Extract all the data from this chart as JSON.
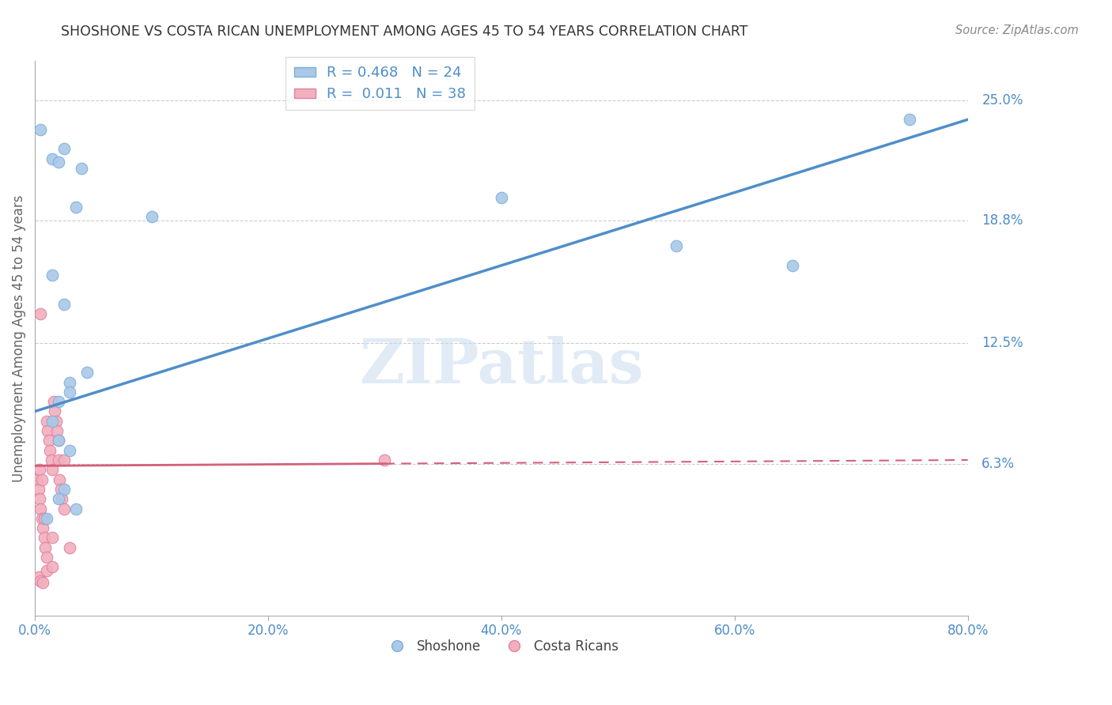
{
  "title": "SHOSHONE VS COSTA RICAN UNEMPLOYMENT AMONG AGES 45 TO 54 YEARS CORRELATION CHART",
  "source": "Source: ZipAtlas.com",
  "xlabel_ticks": [
    "0.0%",
    "20.0%",
    "40.0%",
    "60.0%",
    "80.0%"
  ],
  "xlabel_vals": [
    0.0,
    20.0,
    40.0,
    60.0,
    80.0
  ],
  "ylabel_right_labels": [
    "25.0%",
    "18.8%",
    "12.5%",
    "6.3%"
  ],
  "ylabel_right_vals": [
    25.0,
    18.8,
    12.5,
    6.3
  ],
  "xlim": [
    0.0,
    80.0
  ],
  "ylim": [
    -1.5,
    27.0
  ],
  "watermark": "ZIPatlas",
  "legend_blue_r": "0.468",
  "legend_blue_n": "24",
  "legend_pink_r": "0.011",
  "legend_pink_n": "38",
  "shoshone_x": [
    0.5,
    2.5,
    4.0,
    1.5,
    2.0,
    3.5,
    10.0,
    1.5,
    2.5,
    3.0,
    4.5,
    2.0,
    3.0,
    40.0,
    55.0,
    65.0,
    75.0,
    1.5,
    2.0,
    3.0,
    2.5,
    2.0,
    1.0,
    3.5
  ],
  "shoshone_y": [
    23.5,
    22.5,
    21.5,
    22.0,
    21.8,
    19.5,
    19.0,
    16.0,
    14.5,
    10.5,
    11.0,
    9.5,
    10.0,
    20.0,
    17.5,
    16.5,
    24.0,
    8.5,
    7.5,
    7.0,
    5.0,
    4.5,
    3.5,
    4.0
  ],
  "costaricans_x": [
    0.2,
    0.3,
    0.4,
    0.5,
    0.6,
    0.7,
    0.8,
    0.9,
    1.0,
    1.0,
    1.1,
    1.2,
    1.3,
    1.4,
    1.5,
    1.6,
    1.7,
    1.8,
    1.9,
    2.0,
    2.1,
    2.2,
    2.3,
    2.5,
    0.3,
    0.5,
    0.7,
    1.0,
    1.5,
    2.0,
    0.4,
    0.6,
    2.5,
    0.5,
    30.0,
    0.8,
    1.5,
    3.0
  ],
  "costaricans_y": [
    5.5,
    5.0,
    4.5,
    4.0,
    3.5,
    3.0,
    2.5,
    2.0,
    1.5,
    8.5,
    8.0,
    7.5,
    7.0,
    6.5,
    6.0,
    9.5,
    9.0,
    8.5,
    8.0,
    7.5,
    5.5,
    5.0,
    4.5,
    4.0,
    0.5,
    0.3,
    0.2,
    0.8,
    1.0,
    6.5,
    6.0,
    5.5,
    6.5,
    14.0,
    6.5,
    3.5,
    2.5,
    2.0
  ],
  "blue_line_color": "#4f8ec9",
  "pink_line_color": "#d4607a",
  "blue_dot_facecolor": "#aac8e8",
  "blue_dot_edgecolor": "#7ab0d8",
  "pink_dot_facecolor": "#f2b0be",
  "pink_dot_edgecolor": "#e080a0",
  "grid_color": "#cccccc",
  "axis_label": "Unemployment Among Ages 45 to 54 years",
  "ylabel_color": "#4f8ec9",
  "xtick_color": "#4f8ec9",
  "title_color": "#333333",
  "blue_line_y0": 9.0,
  "blue_line_y1": 24.0,
  "pink_line_y0": 6.2,
  "pink_line_y1": 6.5,
  "pink_solid_end_x": 30.0
}
